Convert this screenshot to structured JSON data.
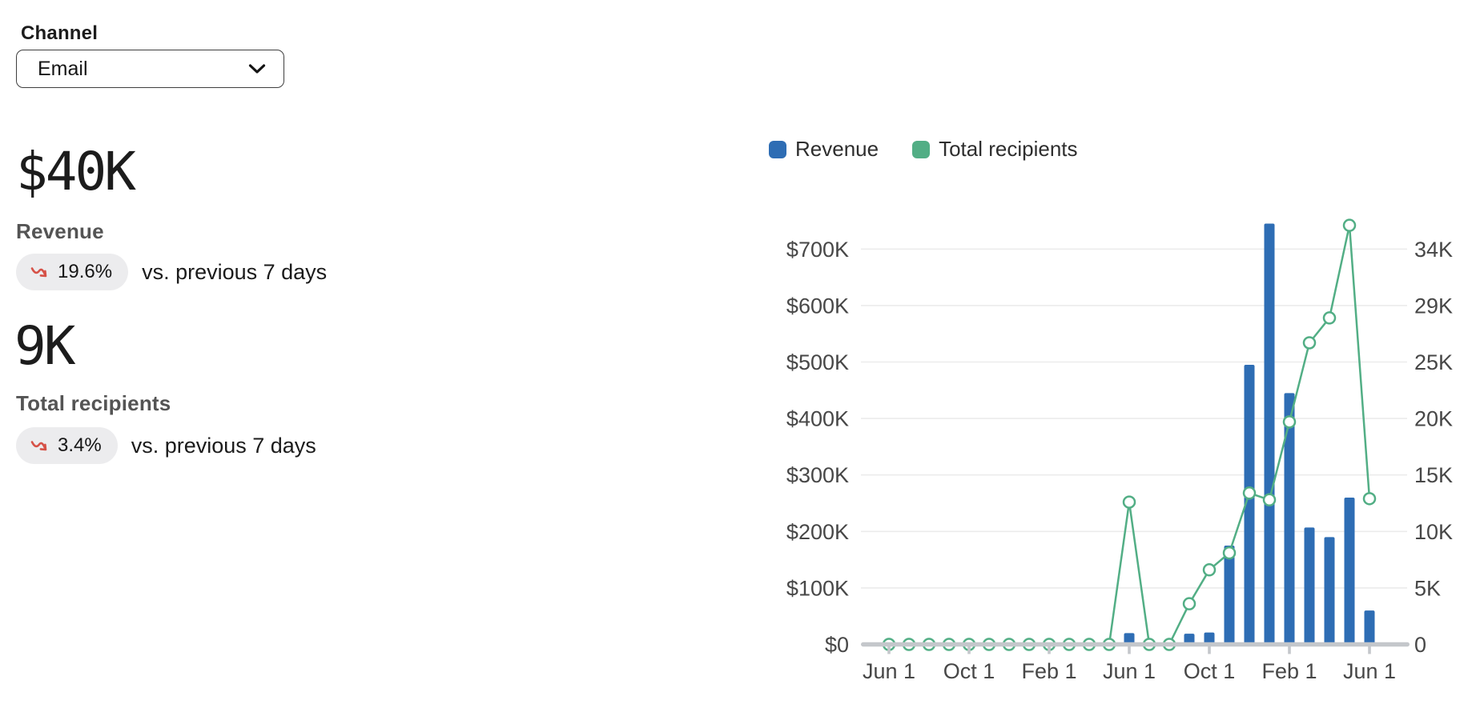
{
  "channel": {
    "label": "Channel",
    "value": "Email"
  },
  "stats": [
    {
      "value": "$40K",
      "label": "Revenue",
      "change": "19.6%",
      "trend": "down",
      "comparison": "vs. previous 7 days"
    },
    {
      "value": "9K",
      "label": "Total recipients",
      "change": "3.4%",
      "trend": "down",
      "comparison": "vs. previous 7 days"
    }
  ],
  "colors": {
    "bar_blue": "#2e6db4",
    "line_green": "#52ae85",
    "trend_red": "#d65147",
    "pill_bg": "#ececee",
    "grid": "#ececec",
    "axis_line": "#c4c7cb",
    "axis_text": "#474747"
  },
  "chart_data": {
    "type": "bar",
    "subtype": "combo-bar-line",
    "months_span": "25 monthly points, Jun year1 through Jun year3",
    "x_tick_labels": [
      "Jun 1",
      "Oct 1",
      "Feb 1",
      "Jun 1",
      "Oct 1",
      "Feb 1",
      "Jun 1"
    ],
    "x_tick_positions": [
      0,
      4,
      8,
      12,
      16,
      20,
      24
    ],
    "left_axis": {
      "labels_top_to_bottom": [
        "$700K",
        "$600K",
        "$500K",
        "$400K",
        "$300K",
        "$200K",
        "$100K",
        "$0"
      ],
      "max": 700000
    },
    "right_axis": {
      "labels_top_to_bottom": [
        "34K",
        "29K",
        "25K",
        "20K",
        "15K",
        "10K",
        "5K",
        "0"
      ],
      "max": 34000
    },
    "legend_position": "top",
    "grid": true,
    "series": [
      {
        "name": "Revenue",
        "type": "bar",
        "axis": "left",
        "color": "#2e6db4",
        "values": [
          0,
          0,
          0,
          0,
          0,
          0,
          0,
          0,
          0,
          0,
          0,
          0,
          20000,
          0,
          0,
          19000,
          21000,
          175000,
          495000,
          745000,
          445000,
          207000,
          190000,
          260000,
          60000
        ]
      },
      {
        "name": "Total recipients",
        "type": "line",
        "axis": "right",
        "color": "#52ae85",
        "values": [
          0,
          0,
          0,
          0,
          0,
          0,
          0,
          0,
          0,
          0,
          0,
          0,
          12600,
          0,
          0,
          3600,
          6600,
          8100,
          13400,
          12800,
          19700,
          26700,
          28900,
          37100,
          12900
        ]
      }
    ]
  }
}
